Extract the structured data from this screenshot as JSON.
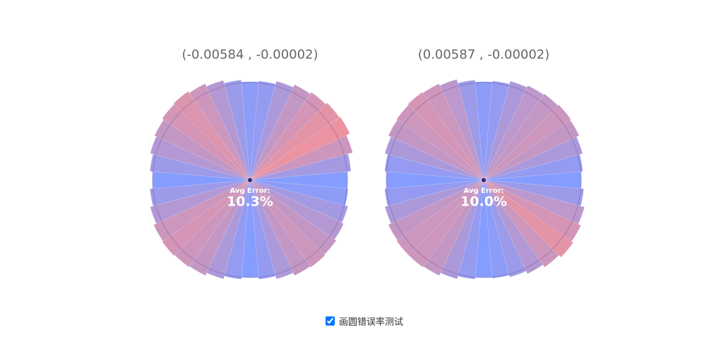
{
  "chart_data": [
    {
      "type": "polar-error",
      "title": "(-0.00584 , -0.00002)",
      "annotation": "Avg Error:",
      "value": 10.3,
      "value_label": "10.3%",
      "low_color": "#6f8cff",
      "high_color": "#e8808f",
      "values": [
        1.0,
        1.01,
        1.04,
        1.06,
        1.08,
        1.09,
        1.08,
        1.05,
        1.02,
        1.0,
        1.02,
        1.05,
        1.08,
        1.09,
        1.1,
        1.09,
        1.06,
        1.03,
        1.0,
        1.03,
        1.06,
        1.08,
        1.1,
        1.11,
        1.09,
        1.06,
        1.03,
        1.01,
        1.02,
        1.05,
        1.08,
        1.1,
        1.12,
        1.13,
        1.09,
        1.04
      ]
    },
    {
      "type": "polar-error",
      "title": "(0.00587 , -0.00002)",
      "annotation": "Avg Error:",
      "value": 10.0,
      "value_label": "10.0%",
      "low_color": "#6f8cff",
      "high_color": "#e8808f",
      "values": [
        1.0,
        1.03,
        1.07,
        1.1,
        1.12,
        1.09,
        1.06,
        1.03,
        1.01,
        1.0,
        1.02,
        1.05,
        1.08,
        1.09,
        1.09,
        1.08,
        1.05,
        1.02,
        1.0,
        1.02,
        1.05,
        1.08,
        1.09,
        1.1,
        1.09,
        1.07,
        1.03,
        1.01,
        1.02,
        1.05,
        1.07,
        1.08,
        1.09,
        1.08,
        1.05,
        1.02
      ]
    }
  ],
  "controls": {
    "checkbox_label": "画圆错误率测试",
    "checked": true
  }
}
